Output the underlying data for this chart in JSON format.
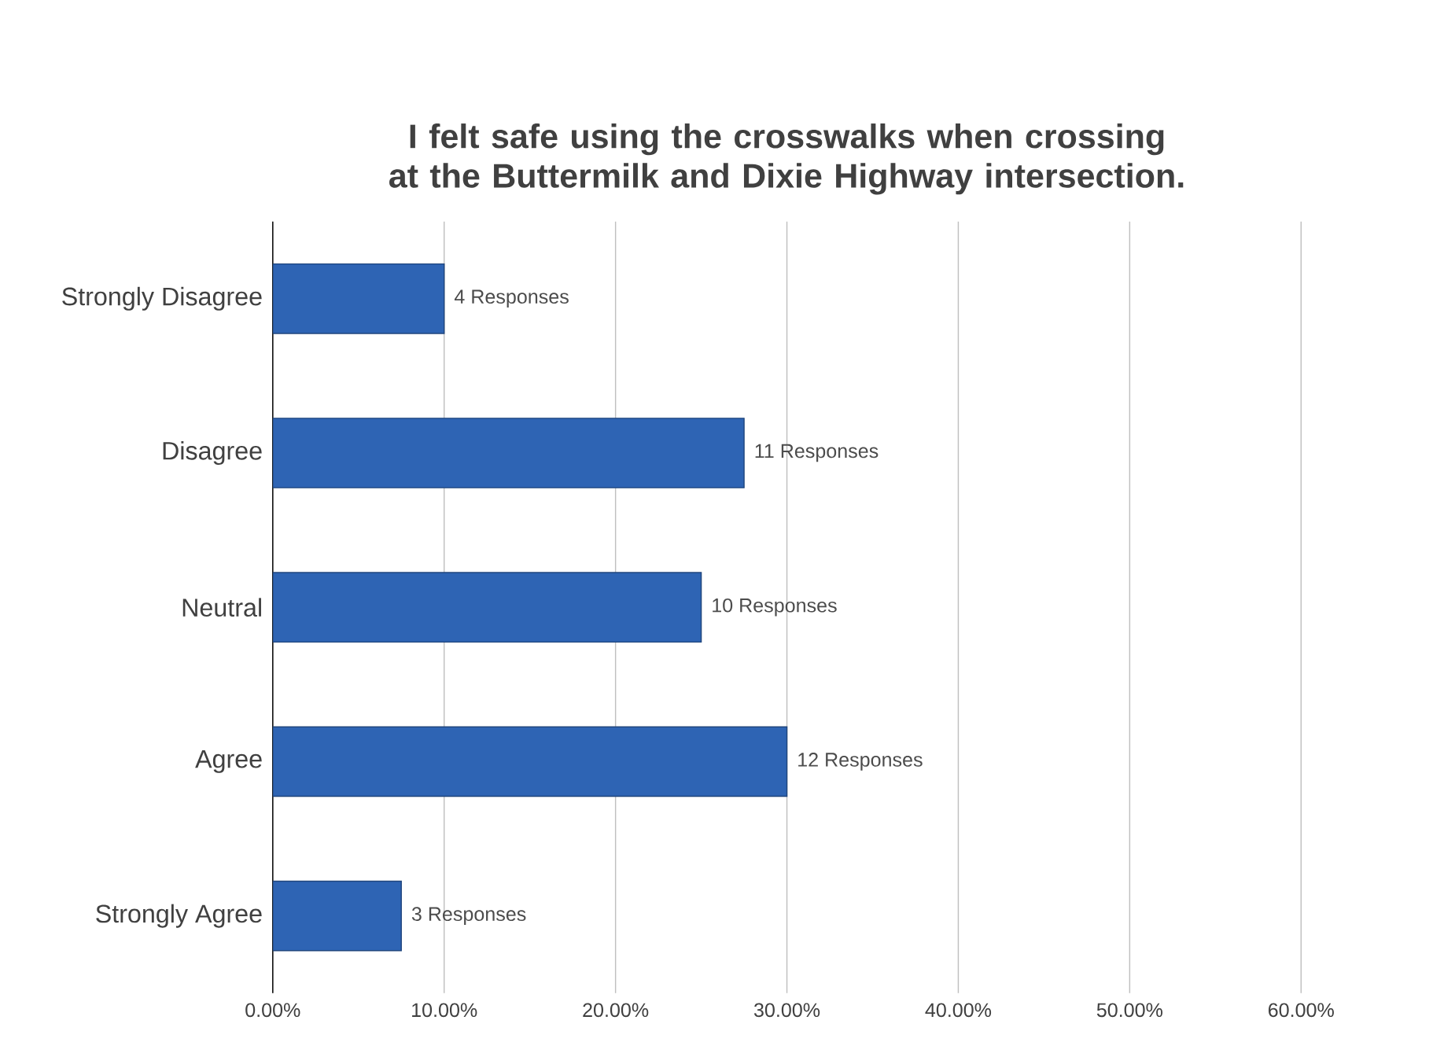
{
  "chart_data": {
    "type": "bar",
    "orientation": "horizontal",
    "title": "I felt safe using the crosswalks when crossing at the Buttermilk and Dixie Highway intersection.",
    "categories": [
      "Strongly Disagree",
      "Disagree",
      "Neutral",
      "Agree",
      "Strongly Agree"
    ],
    "values": [
      10,
      27.5,
      25,
      30,
      7.5
    ],
    "annotations": [
      {
        "text": "4 Responses",
        "x": 10,
        "y": "Strongly Disagree"
      },
      {
        "text": "11 Responses",
        "x": 27.5,
        "y": "Disagree"
      },
      {
        "text": "10 Responses",
        "x": 25,
        "y": "Neutral"
      },
      {
        "text": "12 Responses",
        "x": 30,
        "y": "Agree"
      },
      {
        "text": "3 Responses",
        "x": 7.5,
        "y": "Strongly Agree"
      }
    ],
    "color": "#2e64b4",
    "xlim": [
      0,
      60
    ],
    "xticks": [
      {
        "value": 0,
        "label": "0.00%"
      },
      {
        "value": 10,
        "label": "10.00%"
      },
      {
        "value": 20,
        "label": "20.00%"
      },
      {
        "value": 30,
        "label": "30.00%"
      },
      {
        "value": 40,
        "label": "40.00%"
      },
      {
        "value": 50,
        "label": "50.00%"
      },
      {
        "value": 60,
        "label": "60.00%"
      }
    ],
    "grid": "x"
  }
}
